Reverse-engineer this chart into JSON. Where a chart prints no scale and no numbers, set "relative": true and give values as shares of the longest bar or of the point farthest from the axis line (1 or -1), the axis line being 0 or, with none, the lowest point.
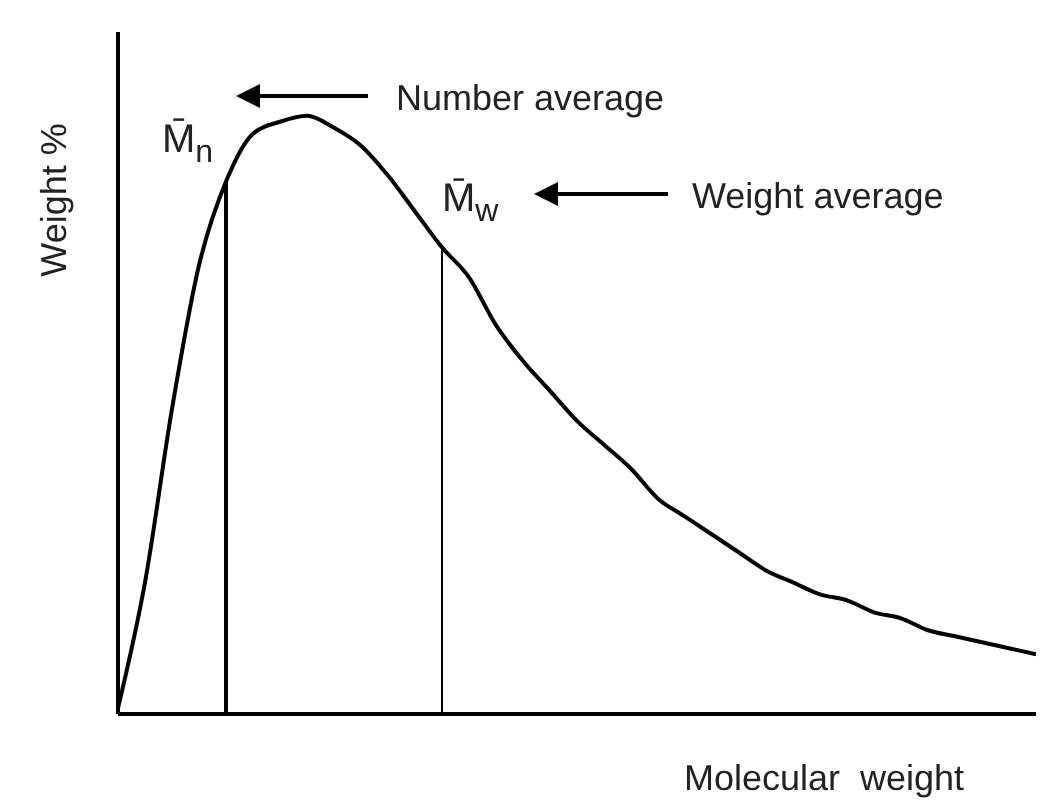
{
  "chart_data": {
    "type": "line",
    "relative": true,
    "xlabel": "Molecular  weight",
    "ylabel": "Weight %",
    "tick_labels": false,
    "categories": [
      null,
      null,
      null,
      null,
      null,
      null,
      null,
      null,
      null,
      null,
      null,
      null,
      null,
      null,
      null,
      null,
      null,
      null,
      null,
      null,
      null,
      null,
      null,
      null,
      null,
      null,
      null,
      null,
      null,
      null,
      null,
      null,
      null,
      null,
      null
    ],
    "series": [
      {
        "color": "#000000",
        "values": [
          0.01,
          0.22,
          0.51,
          0.75,
          0.89,
          0.97,
          0.99,
          1.0,
          0.98,
          0.95,
          0.9,
          0.84,
          0.78,
          0.73,
          0.65,
          0.59,
          0.54,
          0.49,
          0.45,
          0.41,
          0.36,
          0.33,
          0.3,
          0.27,
          0.24,
          0.22,
          0.2,
          0.19,
          0.17,
          0.16,
          0.14,
          0.13,
          0.12,
          0.11,
          0.1
        ]
      }
    ],
    "annotations": [
      "M̄$_{n}$",
      "Number average",
      "M̄$_{w}$",
      "Weight average"
    ]
  }
}
